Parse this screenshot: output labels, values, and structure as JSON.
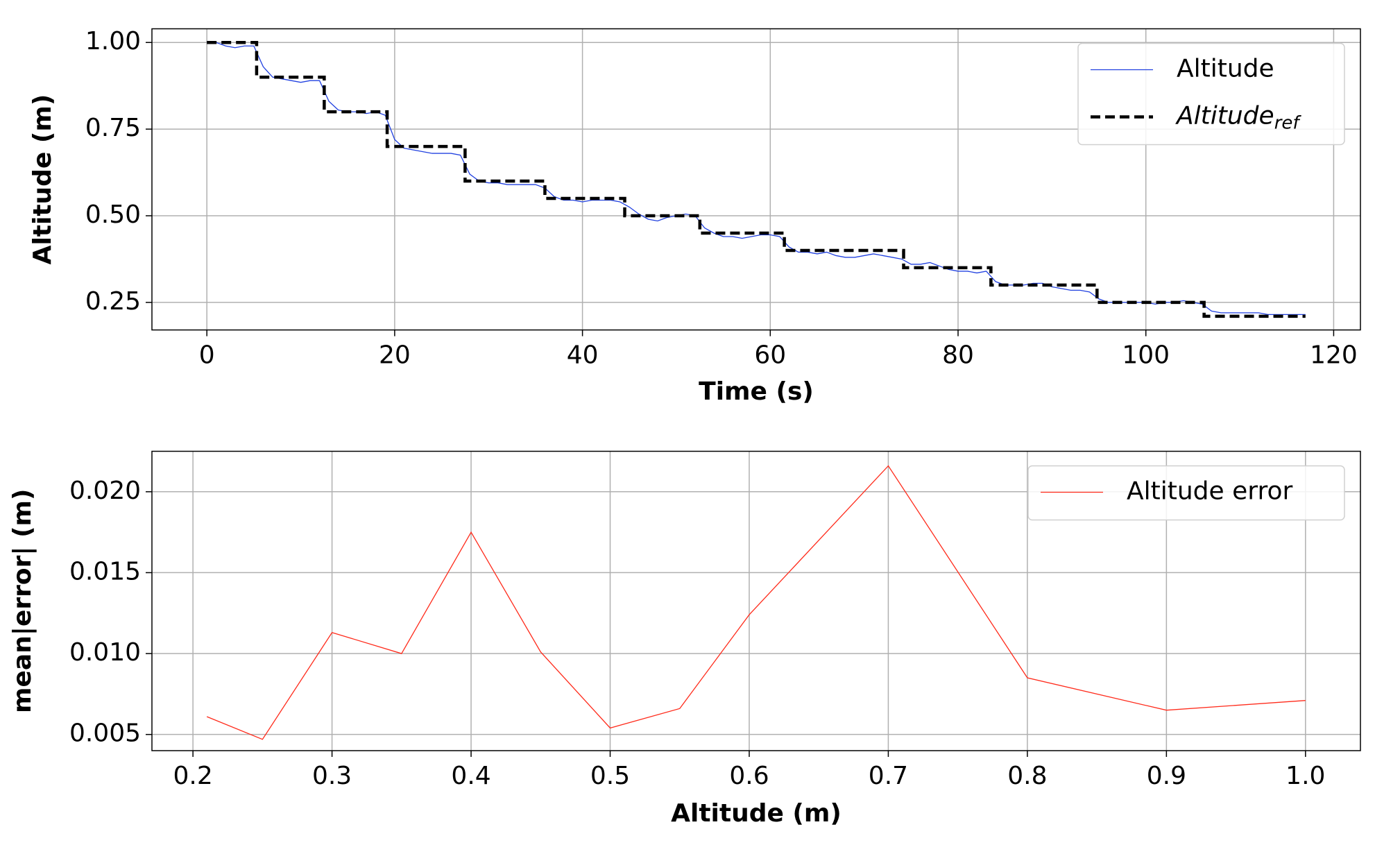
{
  "chart_data": [
    {
      "type": "line",
      "xlabel": "Time (s)",
      "ylabel": "Altitude (m)",
      "xlim": [
        -5.85,
        122.85
      ],
      "ylim": [
        0.1705,
        1.0395
      ],
      "xticks": [
        0,
        20,
        40,
        60,
        80,
        100,
        120
      ],
      "yticks": [
        {
          "value": 0.25,
          "label": "0.25"
        },
        {
          "value": 0.5,
          "label": "0.50"
        },
        {
          "value": 0.75,
          "label": "0.75"
        },
        {
          "value": 1,
          "label": "1.00"
        }
      ],
      "grid": true,
      "legend": "upper right",
      "series": [
        {
          "name": "Altitude",
          "color": "#2040e0",
          "style": "solid",
          "x": [
            0,
            1,
            2,
            3,
            4,
            5,
            6,
            7,
            8,
            9,
            10,
            11,
            12,
            13,
            14,
            15,
            16,
            17,
            18,
            19,
            20,
            21,
            22,
            23,
            24,
            25,
            26,
            27,
            28,
            29,
            30,
            31,
            32,
            33,
            34,
            35,
            36,
            37,
            38,
            39,
            40,
            41,
            42,
            43,
            44,
            45,
            46,
            47,
            48,
            49,
            50,
            51,
            52,
            53,
            54,
            55,
            56,
            57,
            58,
            59,
            60,
            61,
            62,
            63,
            64,
            65,
            66,
            67,
            68,
            69,
            70,
            71,
            72,
            73,
            74,
            75,
            76,
            77,
            78,
            79,
            80,
            81,
            82,
            83,
            84,
            85,
            86,
            87,
            88,
            89,
            90,
            91,
            92,
            93,
            94,
            95,
            96,
            97,
            98,
            99,
            100,
            101,
            102,
            103,
            104,
            105,
            106,
            107,
            108,
            109,
            110,
            111,
            112,
            113,
            114,
            115,
            116,
            117
          ],
          "values": [
            1.0,
            1.0,
            0.99,
            0.985,
            0.99,
            0.99,
            0.93,
            0.9,
            0.895,
            0.89,
            0.885,
            0.89,
            0.89,
            0.83,
            0.805,
            0.8,
            0.8,
            0.795,
            0.8,
            0.79,
            0.72,
            0.695,
            0.69,
            0.685,
            0.68,
            0.68,
            0.68,
            0.675,
            0.62,
            0.6,
            0.595,
            0.595,
            0.59,
            0.59,
            0.59,
            0.59,
            0.58,
            0.555,
            0.545,
            0.545,
            0.54,
            0.545,
            0.545,
            0.545,
            0.54,
            0.525,
            0.505,
            0.49,
            0.485,
            0.495,
            0.5,
            0.505,
            0.5,
            0.465,
            0.45,
            0.44,
            0.44,
            0.435,
            0.44,
            0.445,
            0.445,
            0.44,
            0.41,
            0.395,
            0.395,
            0.39,
            0.395,
            0.385,
            0.38,
            0.38,
            0.385,
            0.39,
            0.385,
            0.38,
            0.375,
            0.36,
            0.36,
            0.365,
            0.355,
            0.345,
            0.34,
            0.34,
            0.335,
            0.34,
            0.31,
            0.3,
            0.3,
            0.3,
            0.305,
            0.305,
            0.295,
            0.29,
            0.285,
            0.285,
            0.28,
            0.26,
            0.25,
            0.25,
            0.25,
            0.25,
            0.25,
            0.245,
            0.25,
            0.25,
            0.255,
            0.25,
            0.245,
            0.225,
            0.22,
            0.22,
            0.22,
            0.22,
            0.22,
            0.215,
            0.215,
            0.215,
            0.215,
            0.215
          ]
        },
        {
          "name": "Altitude_ref",
          "color": "#000000",
          "style": "dashed",
          "x": [
            0,
            5.3,
            5.3,
            12.5,
            12.5,
            19.2,
            19.2,
            27.5,
            27.5,
            36,
            36,
            44.5,
            44.5,
            52.5,
            52.5,
            61.5,
            61.5,
            74.2,
            74.2,
            83.5,
            83.5,
            94.8,
            94.8,
            106.2,
            106.2,
            117
          ],
          "values": [
            1.0,
            1.0,
            0.9,
            0.9,
            0.8,
            0.8,
            0.7,
            0.7,
            0.6,
            0.6,
            0.55,
            0.55,
            0.5,
            0.5,
            0.45,
            0.45,
            0.4,
            0.4,
            0.35,
            0.35,
            0.3,
            0.3,
            0.25,
            0.25,
            0.21,
            0.21
          ]
        }
      ]
    },
    {
      "type": "line",
      "xlabel": "Altitude (m)",
      "ylabel": "mean|error| (m)",
      "xlim": [
        0.1705,
        1.0395
      ],
      "ylim": [
        0.004,
        0.0225
      ],
      "xticks": [
        0.2,
        0.3,
        0.4,
        0.5,
        0.6,
        0.7,
        0.8,
        0.9,
        {
          "value": 1,
          "label": "1.0"
        }
      ],
      "yticks": [
        0.005,
        {
          "value": 0.01,
          "label": "0.010"
        },
        0.015,
        {
          "value": 0.02,
          "label": "0.020"
        }
      ],
      "grid": true,
      "legend": "upper right",
      "x": [
        0.21,
        0.25,
        0.3,
        0.35,
        0.4,
        0.45,
        0.5,
        0.55,
        0.6,
        0.7,
        0.8,
        0.9,
        1.0
      ],
      "series": [
        {
          "name": "Altitude error",
          "color": "#ff2a1a",
          "style": "solid",
          "values": [
            0.0061,
            0.0047,
            0.0113,
            0.01,
            0.0175,
            0.0101,
            0.0054,
            0.0066,
            0.0124,
            0.0216,
            0.0085,
            0.0065,
            0.0071
          ]
        }
      ]
    }
  ]
}
